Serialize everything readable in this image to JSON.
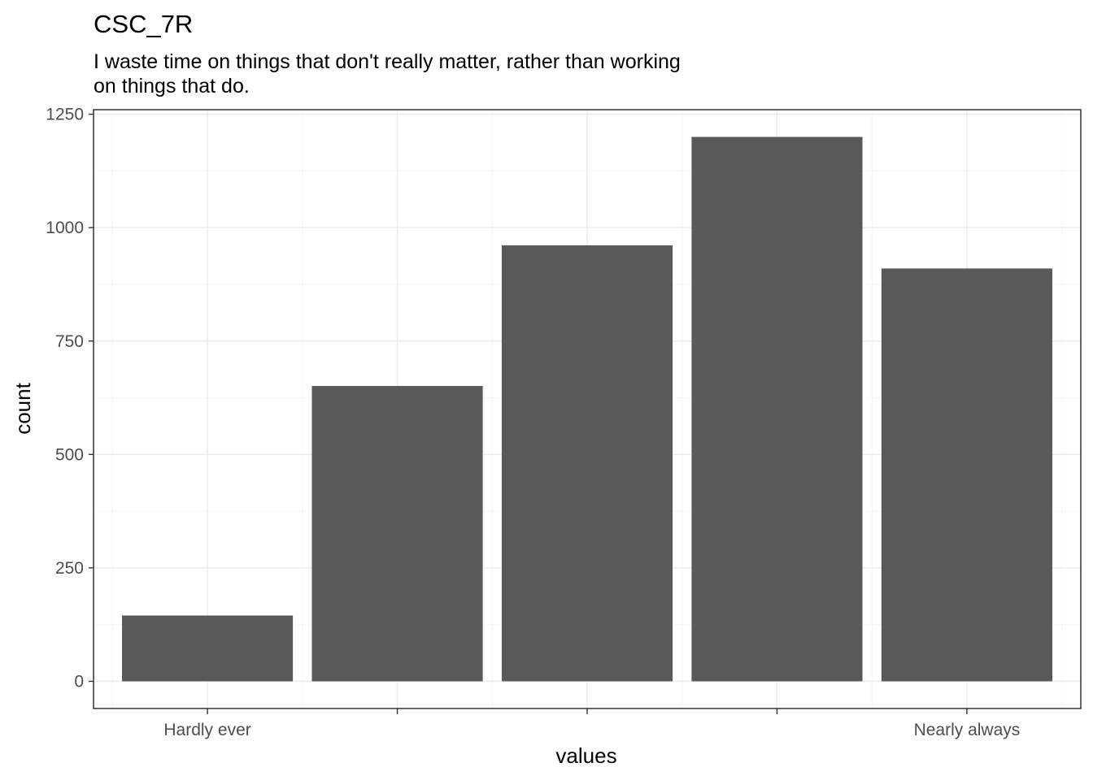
{
  "chart_data": {
    "type": "bar",
    "title": "CSC_7R",
    "subtitle_lines": [
      "I waste time on things that don't really matter, rather than working",
      "on things that do."
    ],
    "xlabel": "values",
    "ylabel": "count",
    "categories": [
      "Hardly ever",
      "",
      "",
      "",
      "Nearly always"
    ],
    "values": [
      145,
      651,
      961,
      1200,
      910
    ],
    "ylim": [
      -60,
      1260
    ],
    "yticks": [
      0,
      250,
      500,
      750,
      1000,
      1250
    ],
    "grid": true,
    "bar_color": "#595959",
    "grid_major_color": "#ebebeb",
    "grid_minor_color": "#f5f5f5",
    "panel_border_color": "#333333"
  }
}
